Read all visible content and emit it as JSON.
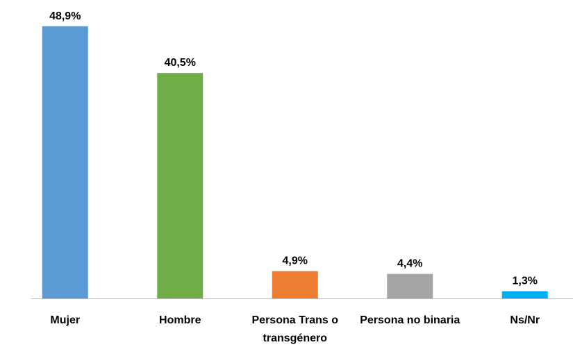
{
  "chart_data": {
    "type": "bar",
    "categories": [
      "Mujer",
      "Hombre",
      "Persona Trans o transgénero",
      "Persona no binaria",
      "Ns/Nr"
    ],
    "values": [
      48.9,
      40.5,
      4.9,
      4.4,
      1.3
    ],
    "value_labels": [
      "48,9%",
      "40,5%",
      "4,9%",
      "4,4%",
      "1,3%"
    ],
    "colors": [
      "#5b9bd5",
      "#70ad47",
      "#ed7d31",
      "#a5a5a5",
      "#00b0f0"
    ]
  }
}
